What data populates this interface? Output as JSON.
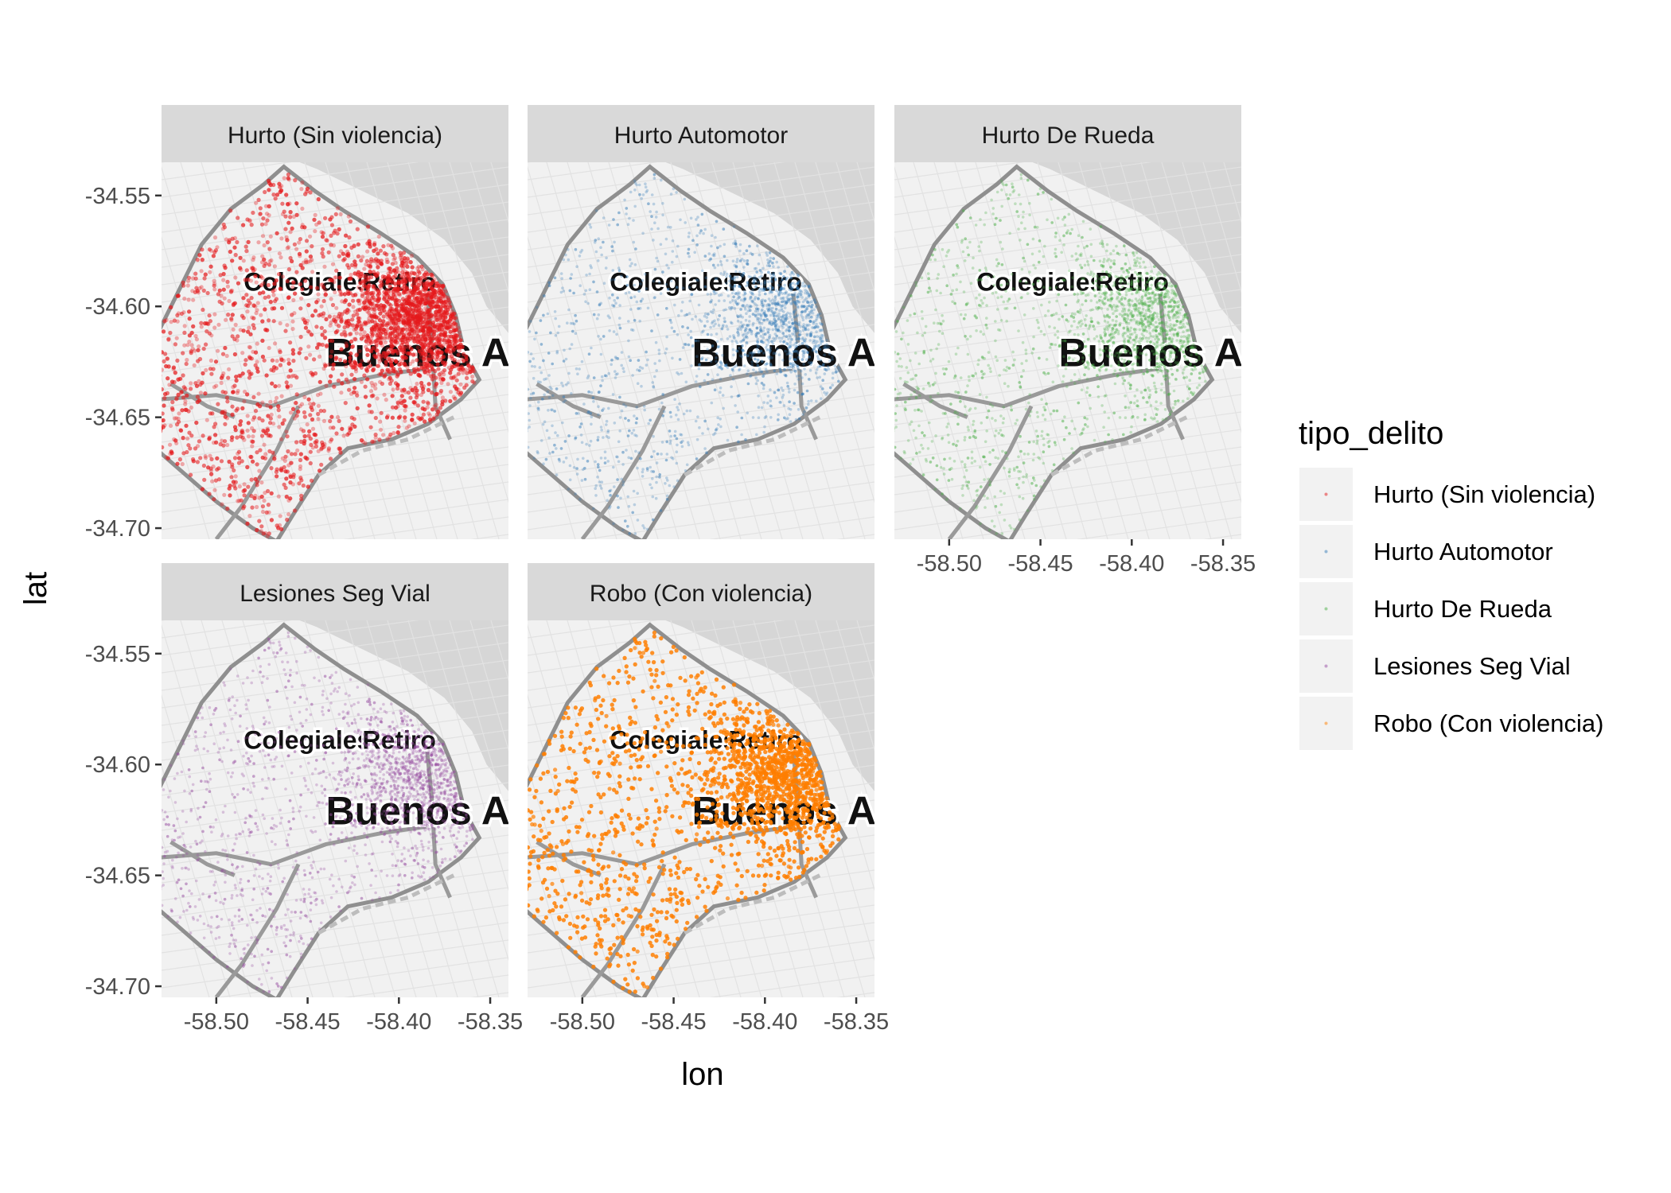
{
  "chart_data": {
    "type": "scatter",
    "facet_variable": "tipo_delito",
    "xlabel": "lon",
    "ylabel": "lat",
    "xlim": [
      -58.53,
      -58.34
    ],
    "ylim": [
      -34.705,
      -34.535
    ],
    "x_ticks": [
      -58.5,
      -58.45,
      -58.4,
      -58.35
    ],
    "x_tick_labels": [
      "-58.50",
      "-58.45",
      "-58.40",
      "-58.35"
    ],
    "y_ticks": [
      -34.55,
      -34.6,
      -34.65,
      -34.7
    ],
    "y_tick_labels": [
      "-34.55",
      "-34.60",
      "-34.65",
      "-34.70"
    ],
    "basemap_labels": [
      "Colegiales",
      "Retiro",
      "Buenos A"
    ],
    "legend": {
      "title": "tipo_delito",
      "placement": "right",
      "items": [
        "Hurto (Sin violencia)",
        "Hurto Automotor",
        "Hurto De Rueda",
        "Lesiones Seg Vial",
        "Robo (Con violencia)"
      ]
    },
    "series": [
      {
        "name": "Hurto (Sin violencia)",
        "color": "#E41A1C",
        "density": "very high",
        "alpha": 0.35
      },
      {
        "name": "Hurto Automotor",
        "color": "#377EB8",
        "density": "medium",
        "alpha": 0.3
      },
      {
        "name": "Hurto De Rueda",
        "color": "#4DAF4A",
        "density": "medium",
        "alpha": 0.3
      },
      {
        "name": "Lesiones Seg Vial",
        "color": "#984EA3",
        "density": "medium",
        "alpha": 0.3
      },
      {
        "name": "Robo (Con violencia)",
        "color": "#FF7F00",
        "density": "very high",
        "alpha": 0.45
      }
    ],
    "hotspot": {
      "lon": -58.385,
      "lat": -34.605
    }
  }
}
